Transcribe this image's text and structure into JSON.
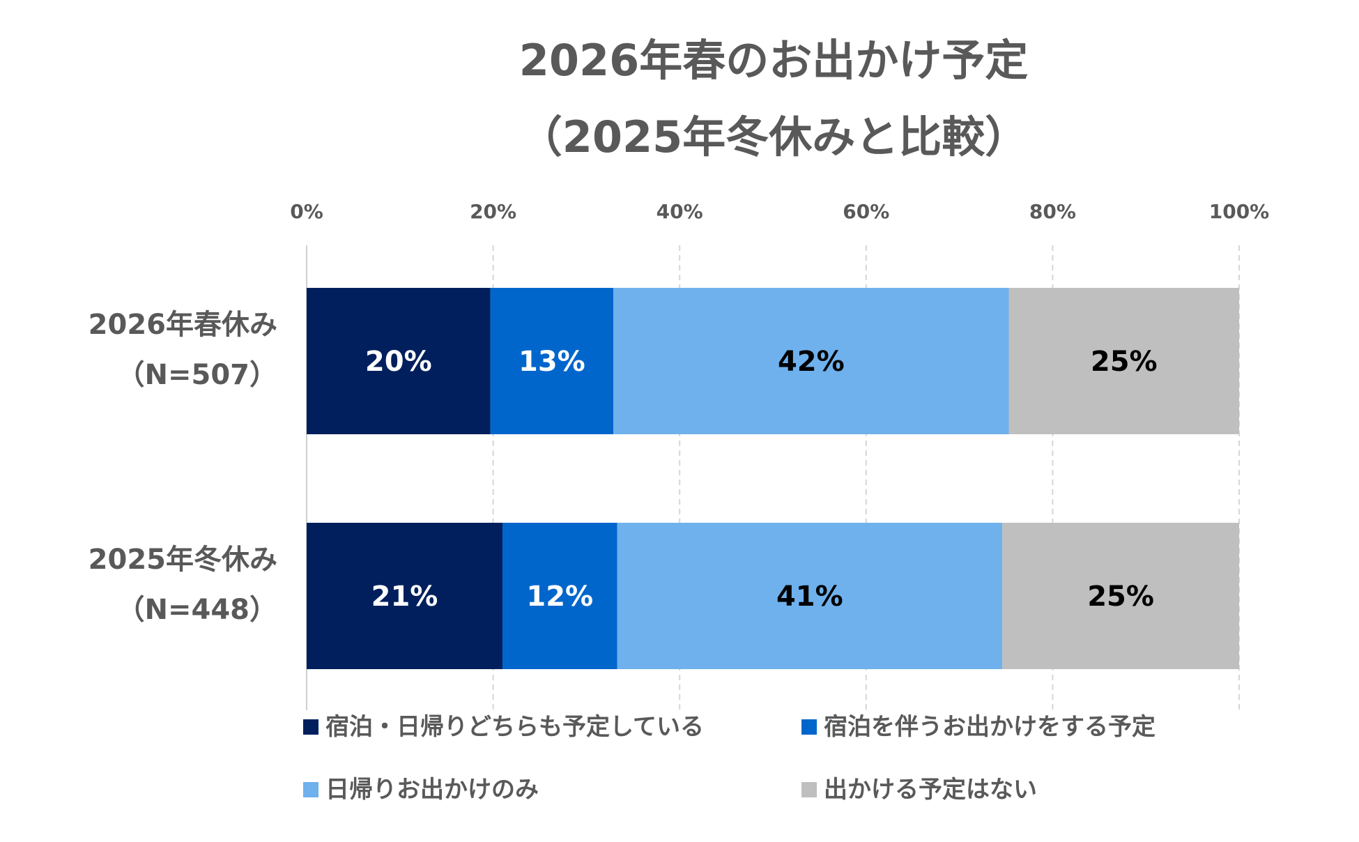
{
  "chart_data": {
    "type": "bar",
    "orientation": "horizontal",
    "stacked": "100%",
    "title": [
      "2026年春のお出かけ予定",
      "（2025年冬休みと比較）"
    ],
    "xlim": [
      0,
      100
    ],
    "x_ticks": [
      "0%",
      "20%",
      "40%",
      "60%",
      "80%",
      "100%"
    ],
    "grid": "vertical dashed",
    "legend_position": "bottom",
    "categories": [
      [
        "2026年春休み",
        "（N=507）"
      ],
      [
        "2025年冬休み",
        "（N=448）"
      ]
    ],
    "series": [
      {
        "name": "宿泊・日帰りどちらも予定している",
        "color": "#001F5C",
        "label_color": "#FFFFFF",
        "values": [
          19.7,
          21.0
        ],
        "labels": [
          "20%",
          "21%"
        ]
      },
      {
        "name": "宿泊を伴うお出かけをする予定",
        "color": "#0066CC",
        "label_color": "#FFFFFF",
        "values": [
          13.2,
          12.3
        ],
        "labels": [
          "13%",
          "12%"
        ]
      },
      {
        "name": "日帰りお出かけのみ",
        "color": "#6FB1EC",
        "label_color": "#000000",
        "values": [
          42.4,
          41.3
        ],
        "labels": [
          "42%",
          "41%"
        ]
      },
      {
        "name": "出かける予定はない",
        "color": "#BFBFBF",
        "label_color": "#000000",
        "values": [
          24.7,
          25.4
        ],
        "labels": [
          "25%",
          "25%"
        ]
      }
    ]
  }
}
